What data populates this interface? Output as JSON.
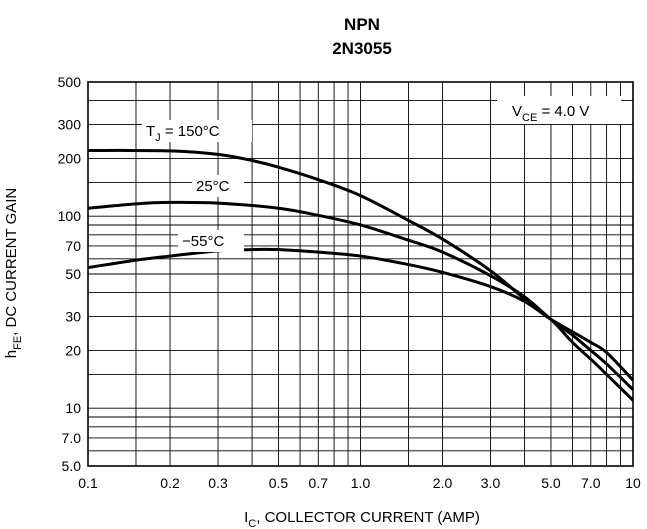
{
  "chart_data": {
    "type": "line",
    "title": "NPN",
    "subtitle": "2N3055",
    "xlabel": {
      "main": "I",
      "sub": "C",
      "rest": ", COLLECTOR CURRENT (AMP)"
    },
    "ylabel": {
      "main": "h",
      "sub": "FE",
      "rest": ", DC CURRENT GAIN"
    },
    "x_scale": "log",
    "y_scale": "log",
    "xlim": [
      0.1,
      10
    ],
    "ylim": [
      5,
      500
    ],
    "x_ticks": [
      {
        "value": 0.1,
        "label": "0.1"
      },
      {
        "value": 0.2,
        "label": "0.2"
      },
      {
        "value": 0.3,
        "label": "0.3"
      },
      {
        "value": 0.5,
        "label": "0.5"
      },
      {
        "value": 0.7,
        "label": "0.7"
      },
      {
        "value": 1.0,
        "label": "1.0"
      },
      {
        "value": 2.0,
        "label": "2.0"
      },
      {
        "value": 3.0,
        "label": "3.0"
      },
      {
        "value": 5.0,
        "label": "5.0"
      },
      {
        "value": 7.0,
        "label": "7.0"
      },
      {
        "value": 10,
        "label": "10"
      }
    ],
    "y_ticks": [
      {
        "value": 5,
        "label": "5.0"
      },
      {
        "value": 7,
        "label": "7.0"
      },
      {
        "value": 10,
        "label": "10"
      },
      {
        "value": 20,
        "label": "20"
      },
      {
        "value": 30,
        "label": "30"
      },
      {
        "value": 50,
        "label": "50"
      },
      {
        "value": 70,
        "label": "70"
      },
      {
        "value": 100,
        "label": "100"
      },
      {
        "value": 200,
        "label": "200"
      },
      {
        "value": 300,
        "label": "300"
      },
      {
        "value": 500,
        "label": "500"
      }
    ],
    "grid_x": [
      0.1,
      0.15,
      0.2,
      0.3,
      0.4,
      0.5,
      0.6,
      0.7,
      0.8,
      0.9,
      1,
      1.5,
      2,
      3,
      4,
      5,
      6,
      7,
      8,
      9,
      10
    ],
    "grid_y": [
      5,
      6,
      7,
      8,
      9,
      10,
      15,
      20,
      30,
      40,
      50,
      60,
      70,
      80,
      90,
      100,
      150,
      200,
      300,
      400,
      500
    ],
    "grid": true,
    "annotation": {
      "main": "V",
      "sub": "CE",
      "rest": " = 4.0 V"
    },
    "series": [
      {
        "label": {
          "main": "T",
          "sub": "J",
          "rest": " = 150°C"
        },
        "x": [
          0.1,
          0.2,
          0.3,
          0.4,
          0.5,
          0.7,
          1.0,
          1.5,
          2.0,
          3.0,
          4.0,
          5.0,
          6.0,
          7.0,
          8.0,
          10
        ],
        "y": [
          220,
          219,
          210,
          195,
          180,
          155,
          128,
          95,
          76,
          52,
          37,
          29,
          22,
          18,
          15,
          11
        ]
      },
      {
        "label": {
          "main": "25°C",
          "sub": "",
          "rest": ""
        },
        "x": [
          0.1,
          0.15,
          0.2,
          0.3,
          0.5,
          0.7,
          1.0,
          1.5,
          2.0,
          3.0,
          4.0,
          5.0,
          6.0,
          7.0,
          8.0,
          10
        ],
        "y": [
          110,
          116,
          118,
          117,
          110,
          101,
          90,
          75,
          65,
          49,
          38,
          29,
          24,
          20,
          17,
          12.5
        ]
      },
      {
        "label": {
          "main": "−55°C",
          "sub": "",
          "rest": ""
        },
        "x": [
          0.1,
          0.15,
          0.2,
          0.3,
          0.4,
          0.5,
          0.7,
          1.0,
          1.5,
          2.0,
          3.0,
          4.0,
          5.0,
          6.0,
          7.0,
          8.0,
          10
        ],
        "y": [
          54,
          59,
          62,
          66,
          67,
          67,
          65,
          62,
          56,
          51,
          43,
          36,
          29,
          25,
          22,
          19.5,
          14
        ]
      }
    ]
  }
}
